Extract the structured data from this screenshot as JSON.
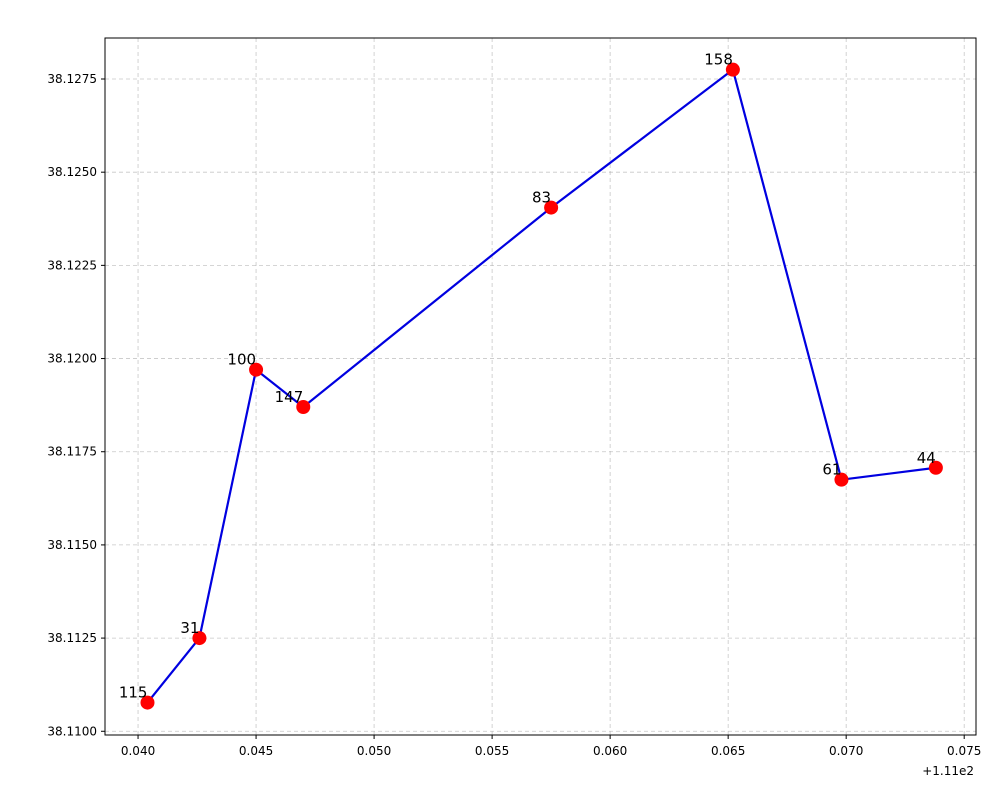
{
  "chart_data": {
    "type": "line",
    "title": "",
    "xlabel": "",
    "ylabel": "",
    "x_offset_text": "+1.11e2",
    "xlim": [
      0.0386,
      0.0755
    ],
    "ylim": [
      38.1099,
      38.1286
    ],
    "x_ticks": [
      0.04,
      0.045,
      0.05,
      0.055,
      0.06,
      0.065,
      0.07,
      0.075
    ],
    "x_tick_labels": [
      "0.040",
      "0.045",
      "0.050",
      "0.055",
      "0.060",
      "0.065",
      "0.070",
      "0.075"
    ],
    "y_ticks": [
      38.11,
      38.1125,
      38.115,
      38.1175,
      38.12,
      38.1225,
      38.125,
      38.1275
    ],
    "y_tick_labels": [
      "38.1100",
      "38.1125",
      "38.1150",
      "38.1175",
      "38.1200",
      "38.1225",
      "38.1250",
      "38.1275"
    ],
    "grid": true,
    "line_color": "#0000e0",
    "marker_color": "#ff0000",
    "points": [
      {
        "x": 0.0404,
        "y": 38.11077,
        "label": "115"
      },
      {
        "x": 0.0426,
        "y": 38.1125,
        "label": "31"
      },
      {
        "x": 0.045,
        "y": 38.1197,
        "label": "100"
      },
      {
        "x": 0.047,
        "y": 38.1187,
        "label": "147"
      },
      {
        "x": 0.0575,
        "y": 38.12405,
        "label": "83"
      },
      {
        "x": 0.0652,
        "y": 38.12775,
        "label": "158"
      },
      {
        "x": 0.0698,
        "y": 38.11675,
        "label": "61"
      },
      {
        "x": 0.0738,
        "y": 38.11707,
        "label": "44"
      }
    ]
  }
}
